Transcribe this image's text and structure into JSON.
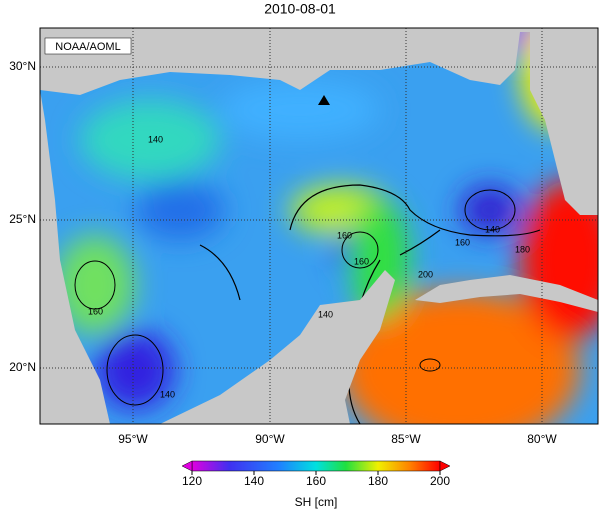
{
  "title": "2010-08-01",
  "badge": "NOAA/AOML",
  "lat_labels": [
    "30°N",
    "25°N",
    "20°N"
  ],
  "lon_labels": [
    "95°W",
    "90°W",
    "85°W",
    "80°W"
  ],
  "colorbar": {
    "ticks": [
      120,
      140,
      160,
      180,
      200
    ],
    "label": "SH [cm]"
  },
  "contour_labels": [
    "160",
    "160",
    "140",
    "160",
    "160",
    "180",
    "200",
    "140",
    "140",
    "140"
  ]
}
